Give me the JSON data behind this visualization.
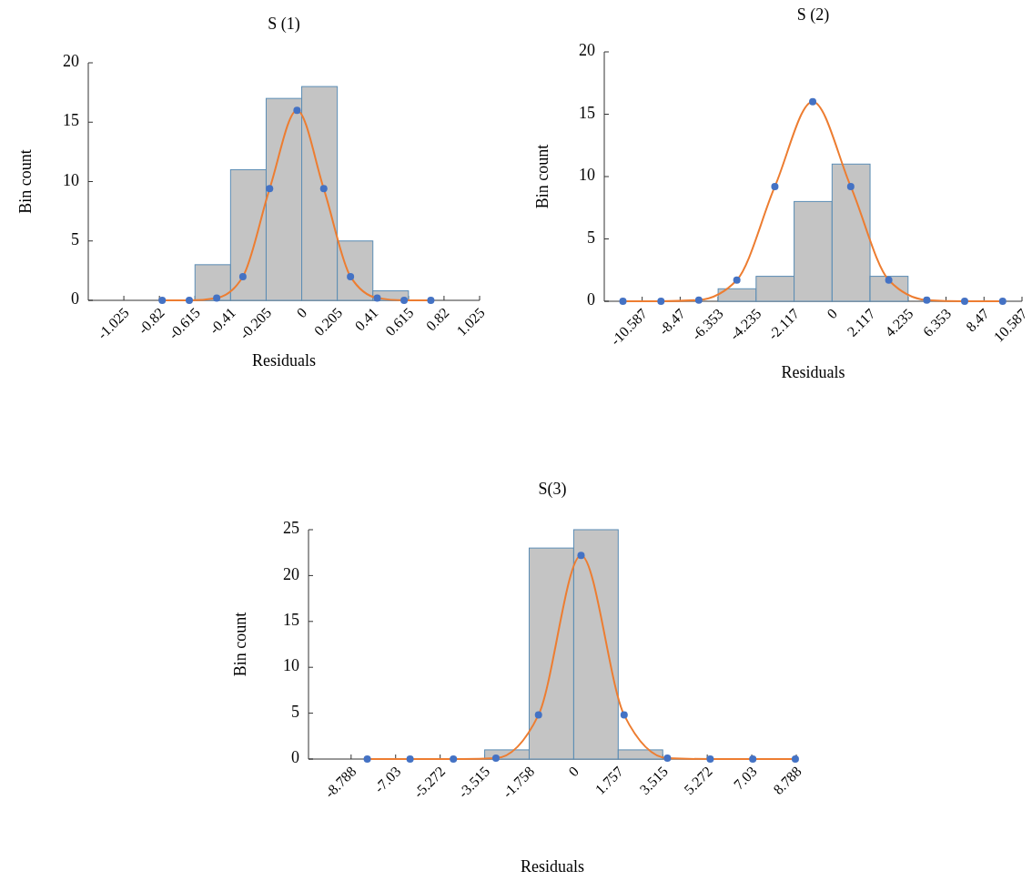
{
  "chart_data": [
    {
      "type": "histogram",
      "title": "S (1)",
      "xlabel": "Residuals",
      "ylabel": "Bin count",
      "bins": [
        -0.615,
        -0.41,
        -0.205,
        0,
        0.205,
        0.41,
        0.615
      ],
      "values": [
        3,
        11,
        17,
        18,
        5,
        0.8
      ],
      "color": "#c4c4c4",
      "xlim": [
        -1.23,
        1.025
      ],
      "xticks": [
        -1.025,
        -0.82,
        -0.615,
        -0.41,
        -0.205,
        0,
        0.205,
        0.41,
        0.615,
        0.82,
        1.025
      ],
      "ylim": [
        0,
        20
      ],
      "yticks": [
        0,
        5,
        10,
        15,
        20
      ],
      "series": [
        {
          "type": "line",
          "color": "#ed7d31",
          "marker": "none",
          "x": [
            -0.804,
            -0.648,
            -0.49,
            -0.339,
            -0.185,
            -0.027,
            0.127,
            0.281,
            0.435,
            0.59,
            0.744
          ],
          "values": [
            0,
            0,
            0.2,
            2,
            9.4,
            16,
            9.4,
            2,
            0.2,
            0,
            0
          ]
        },
        {
          "type": "scatter",
          "color": "#4472c4",
          "marker": "circle",
          "x": [
            -0.804,
            -0.648,
            -0.49,
            -0.339,
            -0.185,
            -0.027,
            0.127,
            0.281,
            0.435,
            0.59,
            0.744
          ],
          "values": [
            0,
            0,
            0.2,
            2,
            9.4,
            16,
            9.4,
            2,
            0.2,
            0,
            0
          ]
        }
      ]
    },
    {
      "type": "histogram",
      "title": "S (2)",
      "xlabel": "Residuals",
      "ylabel": "Bin count",
      "bins": [
        -6.353,
        -4.235,
        -2.117,
        0,
        2.117,
        4.235
      ],
      "values": [
        1,
        2,
        8,
        11,
        2
      ],
      "color": "#c4c4c4",
      "xlim": [
        -12.7,
        10.587
      ],
      "xticks": [
        -10.587,
        -8.47,
        -6.353,
        -4.235,
        -2.117,
        0,
        2.117,
        4.235,
        6.353,
        8.47,
        10.587
      ],
      "ylim": [
        0,
        20
      ],
      "yticks": [
        0,
        5,
        10,
        15,
        20
      ],
      "series": [
        {
          "type": "line",
          "color": "#ed7d31",
          "marker": "none",
          "x": [
            -11.66,
            -9.54,
            -7.43,
            -5.31,
            -3.19,
            -1.08,
            1.04,
            3.16,
            5.28,
            7.39,
            9.51
          ],
          "values": [
            0,
            0,
            0.1,
            1.7,
            9.2,
            16,
            9.2,
            1.7,
            0.1,
            0,
            0
          ]
        },
        {
          "type": "scatter",
          "color": "#4472c4",
          "marker": "circle",
          "x": [
            -11.66,
            -9.54,
            -7.43,
            -5.31,
            -3.19,
            -1.08,
            1.04,
            3.16,
            5.28,
            7.39,
            9.51
          ],
          "values": [
            0,
            0,
            0.1,
            1.7,
            9.2,
            16,
            9.2,
            1.7,
            0.1,
            0,
            0
          ]
        }
      ]
    },
    {
      "type": "histogram",
      "title": "S(3)",
      "xlabel": "Residuals",
      "ylabel": "Bin count",
      "bins": [
        -3.515,
        -1.758,
        0,
        1.757,
        3.515
      ],
      "values": [
        1,
        23,
        25,
        1
      ],
      "color": "#c4c4c4",
      "xlim": [
        -10.47,
        8.788
      ],
      "xticks": [
        -8.788,
        -7.03,
        -5.272,
        -3.515,
        -1.758,
        0,
        1.757,
        3.515,
        5.272,
        7.03,
        8.788
      ],
      "ylim": [
        0,
        25
      ],
      "yticks": [
        0,
        5,
        10,
        15,
        20,
        25
      ],
      "series": [
        {
          "type": "line",
          "color": "#ed7d31",
          "marker": "none",
          "x": [
            -8.15,
            -6.46,
            -4.75,
            -3.07,
            -1.39,
            0.29,
            1.99,
            3.7,
            5.39,
            7.07,
            8.75
          ],
          "values": [
            0,
            0,
            0,
            0.1,
            4.8,
            22.2,
            4.8,
            0.1,
            0,
            0,
            0
          ]
        },
        {
          "type": "scatter",
          "color": "#4472c4",
          "marker": "circle",
          "x": [
            -8.15,
            -6.46,
            -4.75,
            -3.07,
            -1.39,
            0.29,
            1.99,
            3.7,
            5.39,
            7.07,
            8.75
          ],
          "values": [
            0,
            0,
            0,
            0.1,
            4.8,
            22.2,
            4.8,
            0.1,
            0,
            0,
            0
          ]
        }
      ]
    }
  ]
}
